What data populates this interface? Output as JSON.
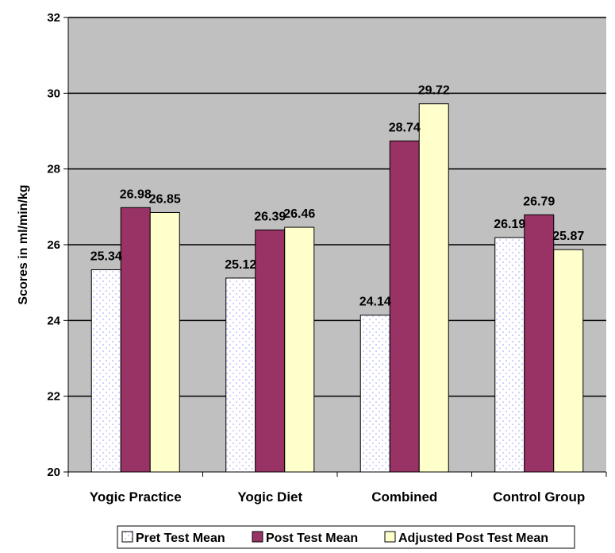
{
  "chart_data": {
    "type": "bar",
    "title": "",
    "xlabel": "",
    "ylabel": "Scores in ml/min/kg",
    "ylim": [
      20,
      32
    ],
    "yticks": [
      20,
      22,
      24,
      26,
      28,
      30,
      32
    ],
    "grid": true,
    "legend_position": "bottom",
    "categories": [
      "Yogic Practice",
      "Yogic Diet",
      "Combined",
      "Control Group"
    ],
    "series": [
      {
        "name": "Pret Test Mean",
        "values": [
          25.34,
          25.12,
          24.14,
          26.19
        ],
        "color": "#ffffff",
        "pattern": "dots"
      },
      {
        "name": "Post Test Mean",
        "values": [
          26.98,
          26.39,
          28.74,
          26.79
        ],
        "color": "#993366"
      },
      {
        "name": "Adjusted Post Test Mean",
        "values": [
          26.85,
          26.46,
          29.72,
          25.87
        ],
        "color": "#ffffcc"
      }
    ],
    "data_labels": [
      [
        "25.34",
        "25.12",
        "24.14",
        "26.19"
      ],
      [
        "26.98",
        "26.39",
        "28.74",
        "26.79"
      ],
      [
        "26.85",
        "26.46",
        "29.72",
        "25.87"
      ]
    ],
    "plot_background": "#c0c0c0"
  }
}
